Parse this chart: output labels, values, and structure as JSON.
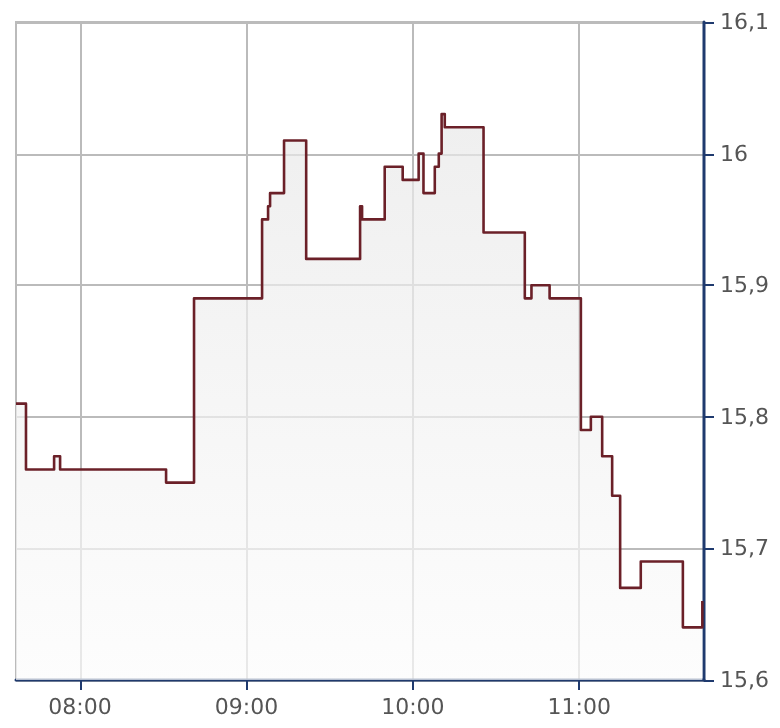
{
  "chart_data": {
    "type": "area",
    "x": [
      7.615,
      7.675,
      7.675,
      7.844,
      7.844,
      7.88,
      7.88,
      8.517,
      8.517,
      8.685,
      8.685,
      9.094,
      9.094,
      9.13,
      9.13,
      9.142,
      9.142,
      9.226,
      9.226,
      9.359,
      9.359,
      9.683,
      9.683,
      9.695,
      9.695,
      9.831,
      9.831,
      9.939,
      9.939,
      10.035,
      10.035,
      10.064,
      10.064,
      10.132,
      10.132,
      10.156,
      10.156,
      10.173,
      10.173,
      10.192,
      10.192,
      10.425,
      10.425,
      10.673,
      10.673,
      10.713,
      10.713,
      10.822,
      10.822,
      11.01,
      11.01,
      11.07,
      11.07,
      11.138,
      11.138,
      11.198,
      11.198,
      11.246,
      11.246,
      11.37,
      11.37,
      11.623,
      11.623,
      11.74,
      11.74
    ],
    "series": [
      {
        "color": "#6b2028",
        "values": [
          15.81,
          15.81,
          15.76,
          15.76,
          15.77,
          15.77,
          15.76,
          15.76,
          15.75,
          15.75,
          15.89,
          15.89,
          15.95,
          15.95,
          15.96,
          15.96,
          15.97,
          15.97,
          16.01,
          16.01,
          15.92,
          15.92,
          15.96,
          15.96,
          15.95,
          15.95,
          15.99,
          15.99,
          15.98,
          15.98,
          16.0,
          16.0,
          15.97,
          15.97,
          15.99,
          15.99,
          16.0,
          16.0,
          16.03,
          16.03,
          16.02,
          16.02,
          15.94,
          15.94,
          15.89,
          15.89,
          15.9,
          15.9,
          15.89,
          15.89,
          15.79,
          15.79,
          15.8,
          15.8,
          15.77,
          15.77,
          15.74,
          15.74,
          15.67,
          15.67,
          15.69,
          15.69,
          15.64,
          15.64,
          15.66
        ]
      }
    ],
    "xlim": [
      7.615,
      11.75
    ],
    "xticks": [
      {
        "value": 8,
        "label": "08:00"
      },
      {
        "value": 9,
        "label": "09:00"
      },
      {
        "value": 10,
        "label": "10:00"
      },
      {
        "value": 11,
        "label": "11:00"
      }
    ],
    "ylim": [
      15.6,
      16.1
    ],
    "yticks": [
      {
        "value": 15.6,
        "label": "15,6"
      },
      {
        "value": 15.7,
        "label": "15,7"
      },
      {
        "value": 15.8,
        "label": "15,8"
      },
      {
        "value": 15.9,
        "label": "15,9"
      },
      {
        "value": 16,
        "label": "16"
      },
      {
        "value": 16.1,
        "label": "16,1"
      }
    ],
    "grid": true
  }
}
